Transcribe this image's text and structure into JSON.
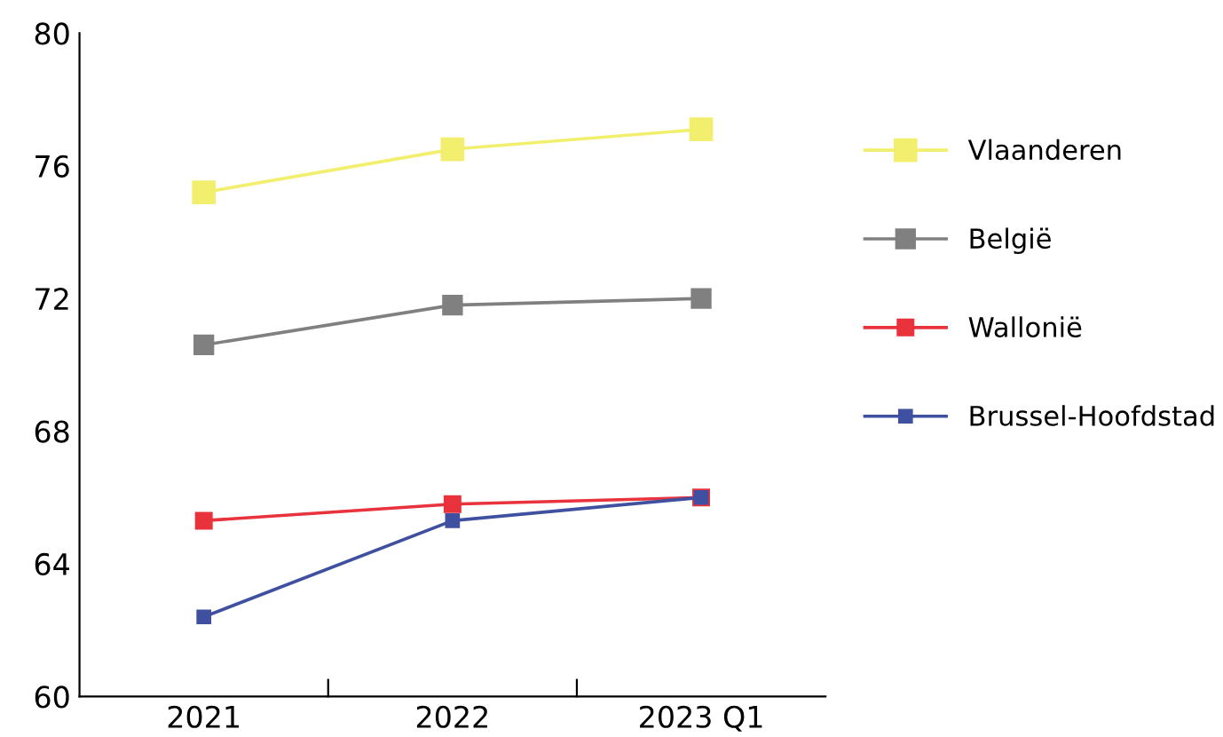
{
  "chart_data": {
    "type": "line",
    "categories": [
      "2021",
      "2022",
      "2023 Q1"
    ],
    "series": [
      {
        "name": "Vlaanderen",
        "color": "#f2ef6e",
        "values": [
          75.2,
          76.5,
          77.1
        ]
      },
      {
        "name": "België",
        "color": "#808080",
        "values": [
          70.6,
          71.8,
          72.0
        ]
      },
      {
        "name": "Wallonië",
        "color": "#e8323c",
        "values": [
          65.3,
          65.8,
          66.0
        ]
      },
      {
        "name": "Brussel-Hoofdstad",
        "color": "#4050a0",
        "values": [
          62.4,
          65.3,
          66.0
        ]
      }
    ],
    "ylim": [
      60,
      80
    ],
    "yticks": [
      60,
      64,
      68,
      72,
      76,
      80
    ],
    "marker": "square",
    "line_style": "solid",
    "grid": false,
    "legend": "right"
  }
}
